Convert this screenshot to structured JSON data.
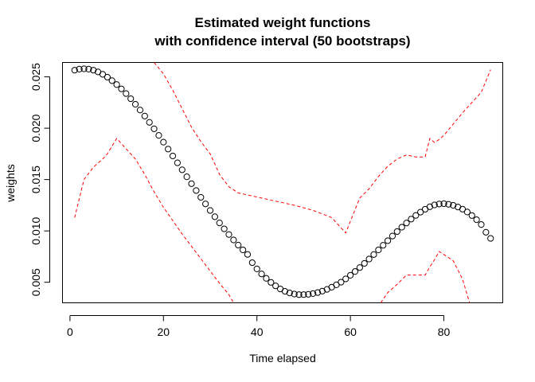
{
  "chart_data": {
    "type": "scatter",
    "title": "Estimated weight functions",
    "subtitle": "with confidence interval (50 bootstraps)",
    "xlabel": "Time elapsed",
    "ylabel": "weights",
    "xlim": [
      -1.6,
      92.6
    ],
    "ylim": [
      0.003,
      0.0264
    ],
    "x_ticks": [
      0,
      20,
      40,
      60,
      80
    ],
    "x_tick_labels": [
      "0",
      "20",
      "40",
      "60",
      "80"
    ],
    "y_ticks": [
      0.005,
      0.01,
      0.015,
      0.02,
      0.025
    ],
    "y_tick_labels": [
      "0.005",
      "0.010",
      "0.015",
      "0.020",
      "0.025"
    ],
    "grid": false,
    "colors": {
      "points": "#000000",
      "confidence": "#ff0000"
    },
    "series": [
      {
        "style": "points",
        "x": [
          1,
          2,
          3,
          4,
          5,
          6,
          7,
          8,
          9,
          10,
          11,
          12,
          13,
          14,
          15,
          16,
          17,
          18,
          19,
          20,
          21,
          22,
          23,
          24,
          25,
          26,
          27,
          28,
          29,
          30,
          31,
          32,
          33,
          34,
          35,
          36,
          37,
          38,
          39,
          40,
          41,
          42,
          43,
          44,
          45,
          46,
          47,
          48,
          49,
          50,
          51,
          52,
          53,
          54,
          55,
          56,
          57,
          58,
          59,
          60,
          61,
          62,
          63,
          64,
          65,
          66,
          67,
          68,
          69,
          70,
          71,
          72,
          73,
          74,
          75,
          76,
          77,
          78,
          79,
          80,
          81,
          82,
          83,
          84,
          85,
          86,
          87,
          88,
          89,
          90
        ],
        "y": [
          0.02565,
          0.02575,
          0.02578,
          0.02575,
          0.02565,
          0.02548,
          0.02525,
          0.02497,
          0.02463,
          0.02425,
          0.02383,
          0.02337,
          0.02287,
          0.02233,
          0.02177,
          0.02118,
          0.02057,
          0.01994,
          0.0193,
          0.01864,
          0.01797,
          0.0173,
          0.01663,
          0.01595,
          0.01527,
          0.0146,
          0.01393,
          0.01327,
          0.01263,
          0.01199,
          0.01138,
          0.01078,
          0.0102,
          0.00965,
          0.00912,
          0.00862,
          0.00815,
          0.00771,
          0.00691,
          0.0063,
          0.00581,
          0.00538,
          0.00499,
          0.00465,
          0.00435,
          0.00412,
          0.00396,
          0.00385,
          0.0038,
          0.0038,
          0.00383,
          0.0039,
          0.004,
          0.00414,
          0.00431,
          0.00452,
          0.00475,
          0.00501,
          0.00533,
          0.00568,
          0.00605,
          0.00643,
          0.00684,
          0.00726,
          0.0077,
          0.00815,
          0.0086,
          0.00905,
          0.0095,
          0.00994,
          0.01036,
          0.01077,
          0.01115,
          0.01151,
          0.01183,
          0.01211,
          0.01235,
          0.01253,
          0.01262,
          0.01265,
          0.01259,
          0.01249,
          0.01233,
          0.01212,
          0.01184,
          0.0115,
          0.01109,
          0.01062,
          0.00987,
          0.00927
        ],
        "marker": "open-circle"
      },
      {
        "style": "dashed-line",
        "x": [
          1,
          3,
          5,
          7,
          8,
          10,
          12,
          14,
          16,
          18,
          20,
          22,
          24,
          26,
          28,
          30,
          32,
          34,
          35
        ],
        "y": [
          0.0113,
          0.015,
          0.0162,
          0.017,
          0.0175,
          0.019,
          0.018,
          0.017,
          0.0155,
          0.0138,
          0.0123,
          0.011,
          0.0097,
          0.0085,
          0.0073,
          0.0061,
          0.0049,
          0.0038,
          0.003
        ]
      },
      {
        "style": "dashed-line",
        "x": [
          18,
          20,
          22,
          24,
          26,
          28,
          30,
          32,
          34,
          36,
          40,
          44,
          48,
          52,
          56,
          59,
          62,
          64,
          66,
          68,
          70,
          72,
          74,
          76,
          77,
          78,
          79,
          80,
          82,
          84,
          86,
          88,
          90
        ],
        "y": [
          0.0264,
          0.0253,
          0.0237,
          0.0219,
          0.0201,
          0.0187,
          0.0175,
          0.0155,
          0.0143,
          0.0137,
          0.0133,
          0.0129,
          0.0125,
          0.012,
          0.0113,
          0.0098,
          0.0132,
          0.0141,
          0.0153,
          0.0163,
          0.017,
          0.0174,
          0.0172,
          0.0172,
          0.019,
          0.0186,
          0.0189,
          0.0193,
          0.0204,
          0.0215,
          0.0225,
          0.0235,
          0.0257
        ]
      },
      {
        "style": "dashed-line",
        "x": [
          66.5,
          68,
          70,
          72,
          74,
          76,
          77,
          78,
          79,
          80,
          82,
          84,
          85.5
        ],
        "y": [
          0.003,
          0.004,
          0.0048,
          0.0057,
          0.0057,
          0.0057,
          0.0065,
          0.0072,
          0.008,
          0.0077,
          0.0071,
          0.0053,
          0.003
        ]
      }
    ]
  }
}
